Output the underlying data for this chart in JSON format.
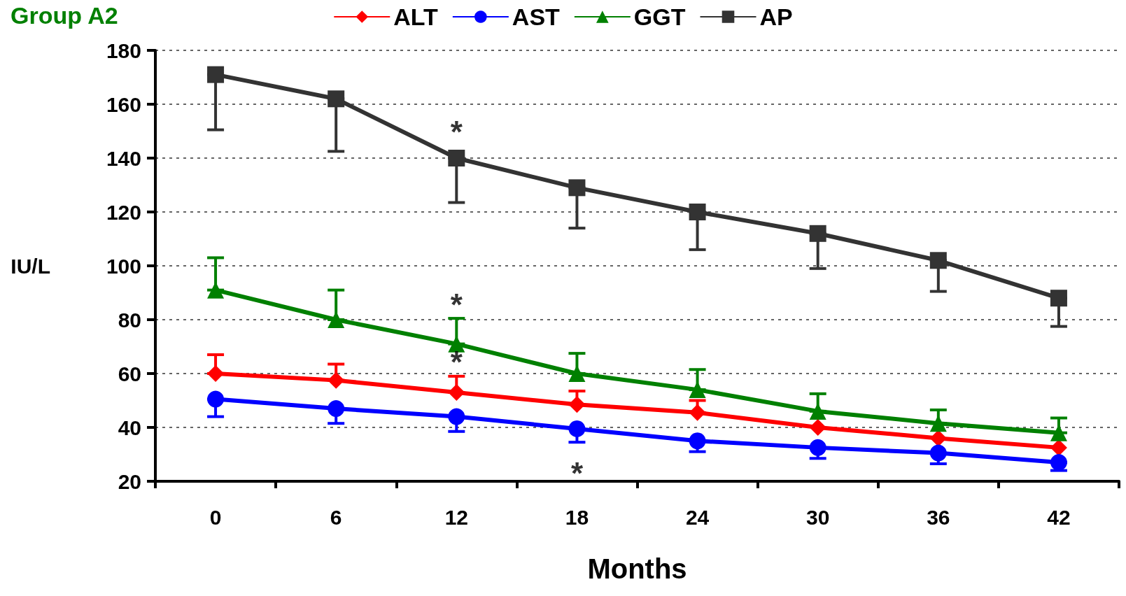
{
  "chart_data": {
    "type": "line",
    "title": "Group A2",
    "xlabel": "Months",
    "ylabel": "IU/L",
    "categories": [
      "0",
      "6",
      "12",
      "18",
      "24",
      "30",
      "36",
      "42"
    ],
    "series": [
      {
        "name": "ALT",
        "color": "#ff0000",
        "marker": "diamond",
        "values": [
          60,
          57.5,
          53,
          48.5,
          45.5,
          40,
          36,
          32.5
        ],
        "errors": [
          [
            60,
            67
          ],
          [
            57.5,
            63.5
          ],
          [
            53,
            59
          ],
          [
            48.5,
            53.5
          ],
          [
            45.5,
            50
          ],
          null,
          null,
          null
        ]
      },
      {
        "name": "AST",
        "color": "#0000ff",
        "marker": "circle",
        "values": [
          50.5,
          47,
          44,
          39.5,
          35,
          32.5,
          30.5,
          27
        ],
        "errors": [
          [
            44,
            50.5
          ],
          [
            41.5,
            47
          ],
          [
            38.5,
            44
          ],
          [
            34.5,
            39.5
          ],
          [
            31,
            35
          ],
          [
            28.5,
            32.5
          ],
          [
            26.5,
            30.5
          ],
          [
            24,
            27
          ]
        ]
      },
      {
        "name": "GGT",
        "color": "#008000",
        "marker": "triangle",
        "values": [
          91,
          80,
          71,
          60,
          54,
          46,
          41.5,
          38
        ],
        "errors": [
          [
            91,
            103
          ],
          [
            80,
            91
          ],
          [
            71,
            80.5
          ],
          [
            60,
            67.5
          ],
          [
            54,
            61.5
          ],
          [
            46,
            52.5
          ],
          [
            41.5,
            46.5
          ],
          [
            38,
            43.5
          ]
        ]
      },
      {
        "name": "AP",
        "color": "#333333",
        "marker": "square",
        "values": [
          171,
          162,
          140,
          129,
          120,
          112,
          102,
          88
        ],
        "errors": [
          [
            150.5,
            171
          ],
          [
            142.5,
            162
          ],
          [
            123.5,
            140
          ],
          [
            114,
            129
          ],
          [
            106,
            120
          ],
          [
            99,
            112
          ],
          [
            90.5,
            102
          ],
          [
            77.5,
            88
          ]
        ]
      }
    ],
    "ylim": [
      20,
      180
    ],
    "yticks": [
      20,
      40,
      60,
      80,
      100,
      120,
      140,
      160,
      180
    ],
    "grid": "y",
    "legend": "top",
    "line_style": "solid",
    "annotations": [
      {
        "text": "*",
        "x": "12",
        "y": 140
      },
      {
        "text": "*",
        "x": "12",
        "y": 71
      },
      {
        "text": "*",
        "x": "12",
        "y": 53
      },
      {
        "text": "*",
        "x": "18",
        "y": 39.5
      }
    ]
  }
}
